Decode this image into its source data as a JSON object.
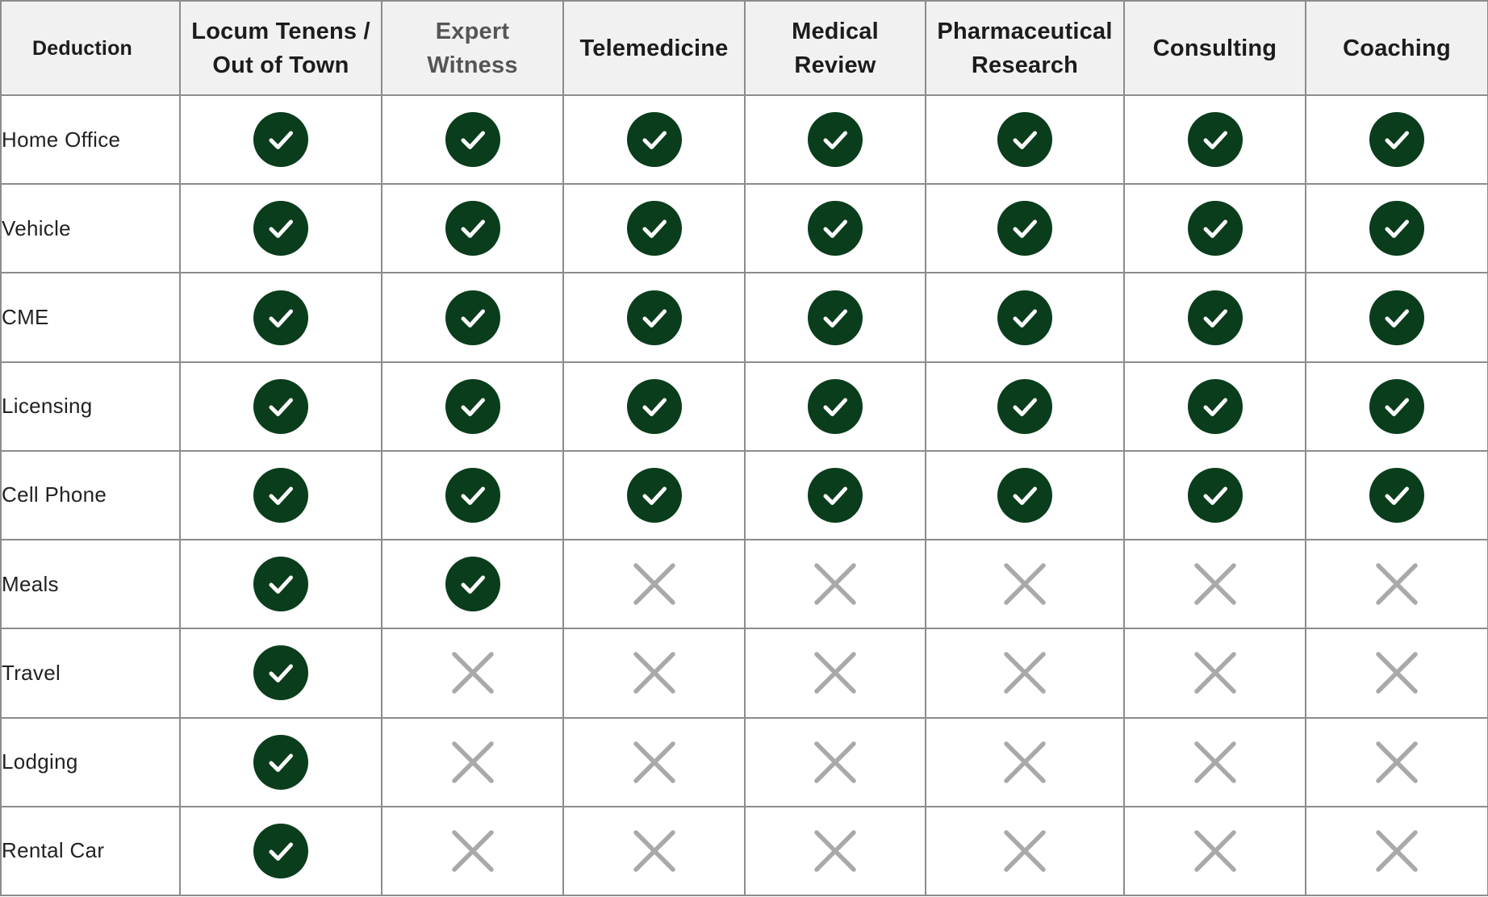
{
  "table": {
    "corner_label": "Deduction",
    "columns": [
      "Locum Tenens / Out of Town",
      "Expert Witness",
      "Telemedicine",
      "Medical Review",
      "Pharmaceutical Research",
      "Consulting",
      "Coaching"
    ],
    "column_headers_split": [
      [
        "Locum Tenens /",
        "Out of Town"
      ],
      [
        "Expert",
        "Witness"
      ],
      [
        "Telemedicine"
      ],
      [
        "Medical",
        "Review"
      ],
      [
        "Pharmaceutical",
        "Research"
      ],
      [
        "Consulting"
      ],
      [
        "Coaching"
      ]
    ],
    "rows": [
      {
        "label": "Home Office",
        "values": [
          true,
          true,
          true,
          true,
          true,
          true,
          true
        ]
      },
      {
        "label": "Vehicle",
        "values": [
          true,
          true,
          true,
          true,
          true,
          true,
          true
        ]
      },
      {
        "label": "CME",
        "values": [
          true,
          true,
          true,
          true,
          true,
          true,
          true
        ]
      },
      {
        "label": "Licensing",
        "values": [
          true,
          true,
          true,
          true,
          true,
          true,
          true
        ]
      },
      {
        "label": "Cell Phone",
        "values": [
          true,
          true,
          true,
          true,
          true,
          true,
          true
        ]
      },
      {
        "label": "Meals",
        "values": [
          true,
          true,
          false,
          false,
          false,
          false,
          false
        ]
      },
      {
        "label": "Travel",
        "values": [
          true,
          false,
          false,
          false,
          false,
          false,
          false
        ]
      },
      {
        "label": "Lodging",
        "values": [
          true,
          false,
          false,
          false,
          false,
          false,
          false
        ]
      },
      {
        "label": "Rental Car",
        "values": [
          true,
          false,
          false,
          false,
          false,
          false,
          false
        ]
      }
    ]
  },
  "icons": {
    "yes": "check-circle-icon",
    "no": "x-mark-icon"
  },
  "colors": {
    "check_fill": "#0a3d1c",
    "check_mark": "#ffffff",
    "x_mark": "#a9a9a9",
    "header_bg": "#f1f1f1",
    "border": "#8c8c8c",
    "muted_header_text": "#555555"
  }
}
